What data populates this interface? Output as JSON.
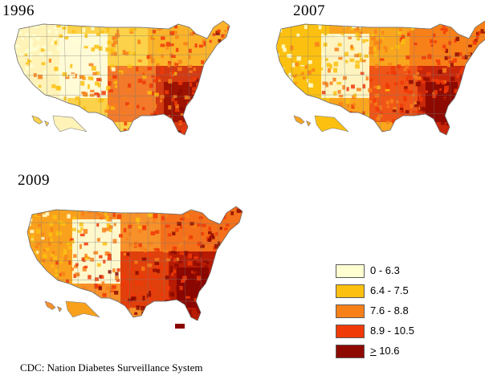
{
  "years": [
    "1996",
    "2007",
    "2009"
  ],
  "legend": {
    "items": [
      {
        "label": "0 - 6.3",
        "color": "#ffffd2"
      },
      {
        "label": "6.4 - 7.5",
        "color": "#fcc010"
      },
      {
        "label": "7.6 - 8.8",
        "color": "#f88019"
      },
      {
        "label": "8.9 - 10.5",
        "color": "#f03a08"
      },
      {
        "ge_symbol": ">",
        "label_rest": " 10.6",
        "color": "#8e0a00"
      }
    ]
  },
  "source": "CDC: Nation Diabetes Surveillance System",
  "maps": [
    {
      "year": "1996",
      "west": "#fff3b8",
      "plains": "#fcd24a",
      "midwest": "#fbb42a",
      "south": "#f27a2a",
      "deepsouth": "#d33a12",
      "core": "#9d1200",
      "mountain": "#fffbd6"
    },
    {
      "year": "2007",
      "west": "#fcc010",
      "plains": "#f9a51e",
      "midwest": "#f88019",
      "south": "#ef5516",
      "deepsouth": "#c8270a",
      "core": "#8e0a00",
      "mountain": "#fff4c0"
    },
    {
      "year": "2009",
      "west": "#f9a11c",
      "plains": "#f7912a",
      "midwest": "#f4701a",
      "south": "#e0400c",
      "deepsouth": "#b81b04",
      "core": "#8a0600",
      "mountain": "#fff8cc"
    }
  ]
}
